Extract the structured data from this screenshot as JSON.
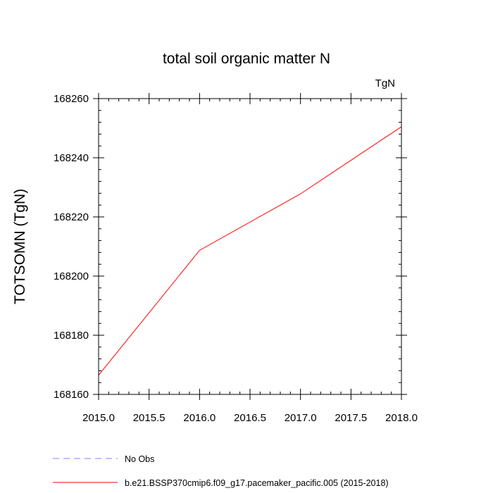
{
  "chart_data": {
    "type": "line",
    "title": "total soil organic matter N",
    "units_label": "TgN",
    "xlabel": "",
    "ylabel": "TOTSOMN  (TgN)",
    "xlim": [
      2015.0,
      2018.0
    ],
    "ylim": [
      168160,
      168260
    ],
    "x_ticks": [
      2015.0,
      2015.5,
      2016.0,
      2016.5,
      2017.0,
      2017.5,
      2018.0
    ],
    "x_tick_labels": [
      "2015.0",
      "2015.5",
      "2016.0",
      "2016.5",
      "2017.0",
      "2017.5",
      "2018.0"
    ],
    "x_minor_ticks": [
      2015.1,
      2015.2,
      2015.3,
      2015.4,
      2015.6,
      2015.7,
      2015.8,
      2015.9,
      2016.1,
      2016.2,
      2016.3,
      2016.4,
      2016.6,
      2016.7,
      2016.8,
      2016.9,
      2017.1,
      2017.2,
      2017.3,
      2017.4,
      2017.6,
      2017.7,
      2017.8,
      2017.9
    ],
    "y_ticks": [
      168160,
      168180,
      168200,
      168220,
      168240,
      168260
    ],
    "y_tick_labels": [
      "168160",
      "168180",
      "168200",
      "168220",
      "168240",
      "168260"
    ],
    "y_minor_ticks": [
      168164,
      168168,
      168172,
      168176,
      168184,
      168188,
      168192,
      168196,
      168204,
      168208,
      168212,
      168216,
      168224,
      168228,
      168232,
      168236,
      168244,
      168248,
      168252,
      168256
    ],
    "grid": false,
    "legend_position": "bottom",
    "series": [
      {
        "name": "b.e21.BSSP370cmip6.f09_g17.pacemaker_pacific.005 (2015-2018)",
        "color": "#ff0000",
        "style": "solid",
        "x": [
          2015.0,
          2016.0,
          2017.0,
          2018.0
        ],
        "values": [
          168166.5,
          168208.7,
          168227.8,
          168250.5
        ]
      }
    ],
    "legend": [
      {
        "label": "No Obs",
        "color": "#8080ff",
        "style": "dashed"
      },
      {
        "label": "b.e21.BSSP370cmip6.f09_g17.pacemaker_pacific.005 (2015-2018)",
        "color": "#ff0000",
        "style": "solid"
      }
    ]
  }
}
